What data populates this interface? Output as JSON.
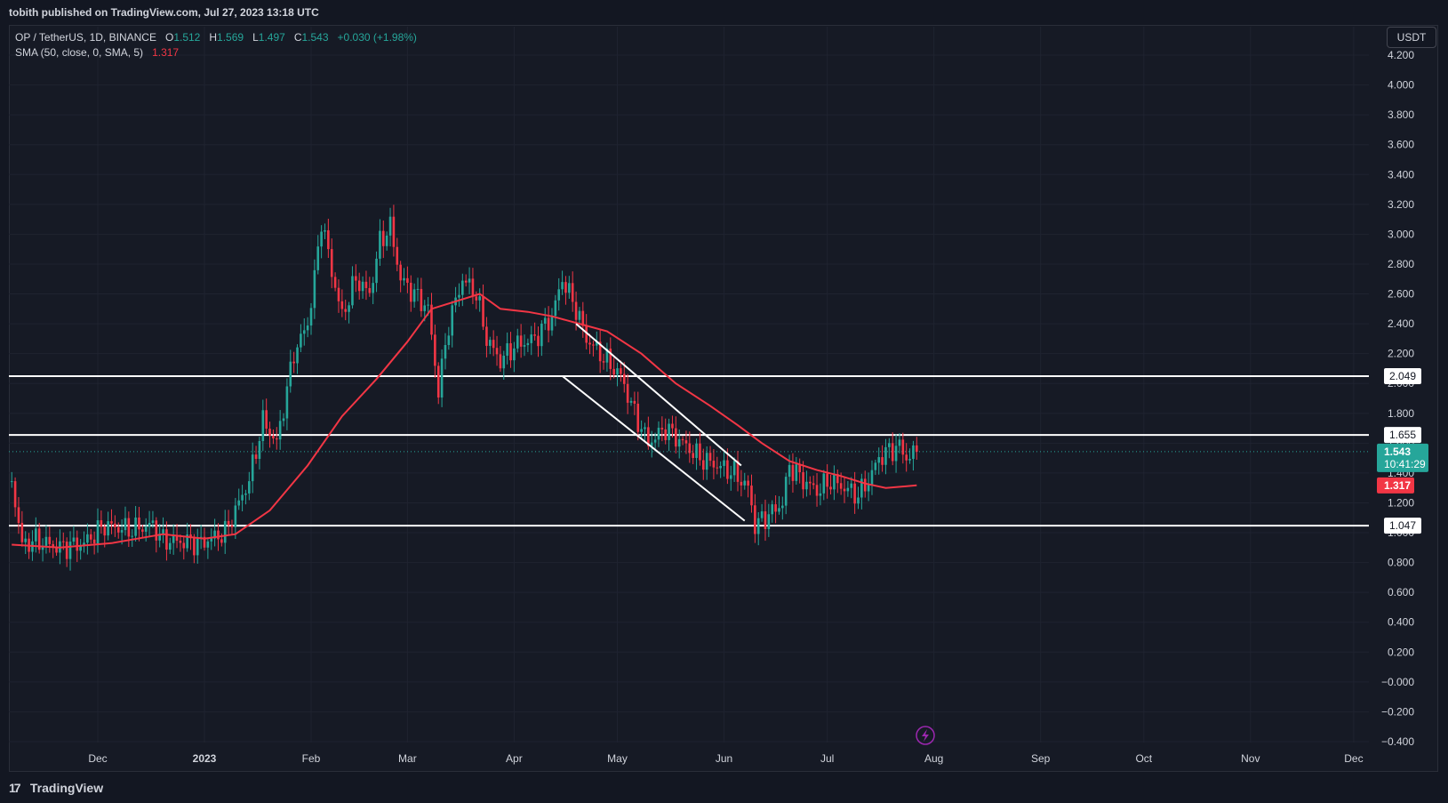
{
  "header": {
    "published": "tobith published on TradingView.com, Jul 27, 2023 13:18 UTC"
  },
  "legend": {
    "symbol": "OP / TetherUS, 1D, BINANCE",
    "o_label": "O",
    "o_value": "1.512",
    "h_label": "H",
    "h_value": "1.569",
    "l_label": "L",
    "l_value": "1.497",
    "c_label": "C",
    "c_value": "1.543",
    "change": "+0.030 (+1.98%)",
    "sma_label": "SMA (50, close, 0, SMA, 5)",
    "sma_value": "1.317"
  },
  "currency": "USDT",
  "brand": {
    "logo": "17",
    "name": "TradingView"
  },
  "colors": {
    "up": "#26a69a",
    "down": "#f23645",
    "sma": "#f23645",
    "level": "#ffffff",
    "background": "#161a25"
  },
  "icons": {
    "replay": "lightning-bolt-icon"
  },
  "chart_data": {
    "type": "candlestick",
    "y_ticks": [
      "4.200",
      "4.000",
      "3.800",
      "3.600",
      "3.400",
      "3.200",
      "3.000",
      "2.800",
      "2.600",
      "2.400",
      "2.200",
      "2.000",
      "1.800",
      "1.600",
      "1.400",
      "1.200",
      "1.000",
      "0.800",
      "0.600",
      "0.400",
      "0.200",
      "−0.000",
      "−0.200",
      "−0.400"
    ],
    "ylim": [
      -0.4,
      4.2
    ],
    "x_ticks": [
      {
        "label": "Dec",
        "date": "2022-12-01"
      },
      {
        "label": "2023",
        "date": "2023-01-01"
      },
      {
        "label": "Feb",
        "date": "2023-02-01"
      },
      {
        "label": "Mar",
        "date": "2023-03-01"
      },
      {
        "label": "Apr",
        "date": "2023-04-01"
      },
      {
        "label": "May",
        "date": "2023-05-01"
      },
      {
        "label": "Jun",
        "date": "2023-06-01"
      },
      {
        "label": "Jul",
        "date": "2023-07-01"
      },
      {
        "label": "Aug",
        "date": "2023-08-01"
      },
      {
        "label": "Sep",
        "date": "2023-09-01"
      },
      {
        "label": "Oct",
        "date": "2023-10-01"
      },
      {
        "label": "Nov",
        "date": "2023-11-01"
      },
      {
        "label": "Dec",
        "date": "2023-12-01"
      }
    ],
    "price_path": [
      [
        "2022-11-06",
        1.35
      ],
      [
        "2022-11-09",
        0.92
      ],
      [
        "2022-11-13",
        0.95
      ],
      [
        "2022-11-20",
        0.9
      ],
      [
        "2022-11-27",
        0.93
      ],
      [
        "2022-12-03",
        1.05
      ],
      [
        "2022-12-10",
        1.02
      ],
      [
        "2022-12-17",
        1.05
      ],
      [
        "2022-12-20",
        0.95
      ],
      [
        "2022-12-31",
        0.93
      ],
      [
        "2023-01-07",
        1.0
      ],
      [
        "2023-01-14",
        1.35
      ],
      [
        "2023-01-18",
        1.75
      ],
      [
        "2023-01-22",
        1.6
      ],
      [
        "2023-01-27",
        2.2
      ],
      [
        "2023-01-31",
        2.4
      ],
      [
        "2023-02-02",
        2.7
      ],
      [
        "2023-02-04",
        3.1
      ],
      [
        "2023-02-07",
        2.75
      ],
      [
        "2023-02-10",
        2.45
      ],
      [
        "2023-02-14",
        2.7
      ],
      [
        "2023-02-18",
        2.6
      ],
      [
        "2023-02-21",
        2.95
      ],
      [
        "2023-02-24",
        3.05
      ],
      [
        "2023-02-27",
        2.7
      ],
      [
        "2023-03-03",
        2.6
      ],
      [
        "2023-03-07",
        2.5
      ],
      [
        "2023-03-10",
        1.95
      ],
      [
        "2023-03-13",
        2.4
      ],
      [
        "2023-03-17",
        2.7
      ],
      [
        "2023-03-21",
        2.6
      ],
      [
        "2023-03-24",
        2.3
      ],
      [
        "2023-03-28",
        2.15
      ],
      [
        "2023-04-01",
        2.25
      ],
      [
        "2023-04-07",
        2.3
      ],
      [
        "2023-04-12",
        2.45
      ],
      [
        "2023-04-15",
        2.7
      ],
      [
        "2023-04-19",
        2.5
      ],
      [
        "2023-04-22",
        2.3
      ],
      [
        "2023-04-26",
        2.2
      ],
      [
        "2023-05-02",
        2.05
      ],
      [
        "2023-05-06",
        1.8
      ],
      [
        "2023-05-10",
        1.6
      ],
      [
        "2023-05-15",
        1.7
      ],
      [
        "2023-05-20",
        1.6
      ],
      [
        "2023-05-25",
        1.5
      ],
      [
        "2023-05-30",
        1.45
      ],
      [
        "2023-06-04",
        1.4
      ],
      [
        "2023-06-08",
        1.3
      ],
      [
        "2023-06-10",
        1.05
      ],
      [
        "2023-06-14",
        1.12
      ],
      [
        "2023-06-18",
        1.2
      ],
      [
        "2023-06-20",
        1.45
      ],
      [
        "2023-06-24",
        1.35
      ],
      [
        "2023-06-28",
        1.28
      ],
      [
        "2023-07-02",
        1.35
      ],
      [
        "2023-07-06",
        1.3
      ],
      [
        "2023-07-10",
        1.25
      ],
      [
        "2023-07-13",
        1.35
      ],
      [
        "2023-07-16",
        1.5
      ],
      [
        "2023-07-19",
        1.55
      ],
      [
        "2023-07-22",
        1.58
      ],
      [
        "2023-07-24",
        1.5
      ],
      [
        "2023-07-27",
        1.543
      ]
    ],
    "sma": [
      [
        "2022-11-06",
        0.92
      ],
      [
        "2022-11-20",
        0.9
      ],
      [
        "2022-12-05",
        0.93
      ],
      [
        "2022-12-20",
        0.99
      ],
      [
        "2023-01-01",
        0.96
      ],
      [
        "2023-01-10",
        0.99
      ],
      [
        "2023-01-20",
        1.15
      ],
      [
        "2023-01-31",
        1.45
      ],
      [
        "2023-02-10",
        1.78
      ],
      [
        "2023-02-20",
        2.03
      ],
      [
        "2023-03-01",
        2.28
      ],
      [
        "2023-03-08",
        2.5
      ],
      [
        "2023-03-15",
        2.55
      ],
      [
        "2023-03-22",
        2.6
      ],
      [
        "2023-03-28",
        2.5
      ],
      [
        "2023-04-05",
        2.48
      ],
      [
        "2023-04-12",
        2.45
      ],
      [
        "2023-04-20",
        2.4
      ],
      [
        "2023-04-28",
        2.35
      ],
      [
        "2023-05-08",
        2.2
      ],
      [
        "2023-05-18",
        2.0
      ],
      [
        "2023-05-28",
        1.85
      ],
      [
        "2023-06-05",
        1.72
      ],
      [
        "2023-06-12",
        1.6
      ],
      [
        "2023-06-20",
        1.48
      ],
      [
        "2023-06-28",
        1.42
      ],
      [
        "2023-07-05",
        1.38
      ],
      [
        "2023-07-12",
        1.33
      ],
      [
        "2023-07-18",
        1.3
      ],
      [
        "2023-07-27",
        1.317
      ]
    ],
    "horizontal_levels": [
      {
        "value": 2.049,
        "label": "2.049"
      },
      {
        "value": 1.655,
        "label": "1.655"
      },
      {
        "value": 1.047,
        "label": "1.047"
      }
    ],
    "channel_lines": [
      [
        [
          "2023-04-19",
          2.4
        ],
        [
          "2023-06-06",
          1.45
        ]
      ],
      [
        [
          "2023-04-15",
          2.05
        ],
        [
          "2023-06-07",
          1.08
        ]
      ]
    ],
    "last_price": {
      "value": 1.543,
      "label": "1.543",
      "countdown": "10:41:29"
    },
    "sma_last": {
      "value": 1.317,
      "label": "1.317"
    }
  }
}
